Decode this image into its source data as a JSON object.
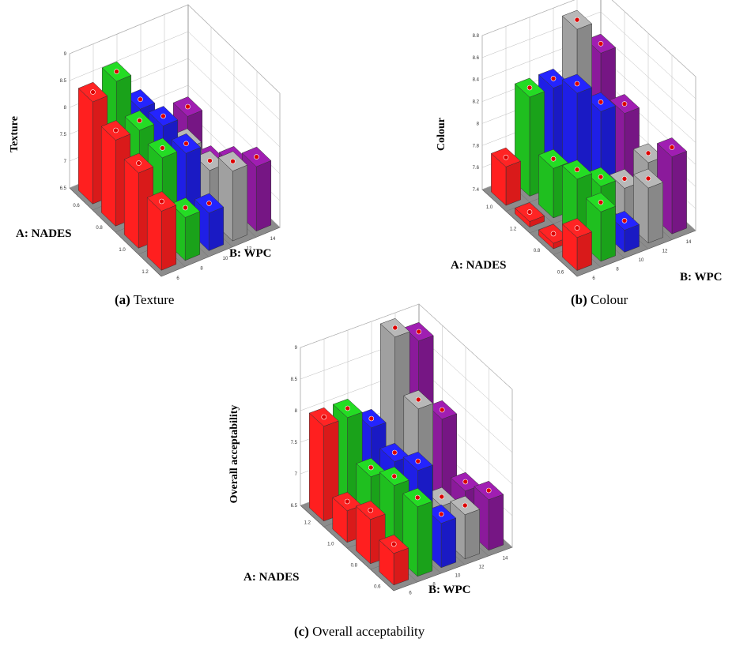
{
  "captions": [
    {
      "label": "(a)",
      "text": "Texture"
    },
    {
      "label": "(b)",
      "text": "Colour"
    },
    {
      "label": "(c)",
      "text": "Overall acceptability"
    }
  ],
  "chart_data": [
    {
      "type": "bar3d",
      "zlabel": "Texture",
      "xlabel": "A: NADES",
      "ylabel": "B: WPC",
      "zticks": [
        "6.5",
        "7",
        "7.5",
        "8",
        "8.5",
        "9"
      ],
      "zlim": [
        6.5,
        9
      ],
      "a_ticks": [
        "0.6",
        "0.8",
        "1.0",
        "1.2"
      ],
      "b_ticks": [
        "6",
        "8",
        "10",
        "12",
        "14"
      ],
      "bars": [
        {
          "a": 0,
          "b": 4,
          "z": 7.4,
          "color": "#8b1a9b"
        },
        {
          "a": 0,
          "b": 3,
          "z": 7.1,
          "color": "#a0a0a0"
        },
        {
          "a": 0,
          "b": 2,
          "z": 7.9,
          "color": "#1f1fe6"
        },
        {
          "a": 0,
          "b": 1,
          "z": 8.6,
          "color": "#1fbf1f"
        },
        {
          "a": 0,
          "b": 0,
          "z": 8.4,
          "color": "#ff1f1f"
        },
        {
          "a": 1,
          "b": 4,
          "z": 6.9,
          "color": "#8b1a9b"
        },
        {
          "a": 1,
          "b": 3,
          "z": 7.4,
          "color": "#a0a0a0"
        },
        {
          "a": 1,
          "b": 2,
          "z": 8.0,
          "color": "#1f1fe6"
        },
        {
          "a": 1,
          "b": 1,
          "z": 8.1,
          "color": "#1fbf1f"
        },
        {
          "a": 1,
          "b": 0,
          "z": 8.1,
          "color": "#ff1f1f"
        },
        {
          "a": 2,
          "b": 4,
          "z": 7.3,
          "color": "#8b1a9b"
        },
        {
          "a": 2,
          "b": 3,
          "z": 7.4,
          "color": "#a0a0a0"
        },
        {
          "a": 2,
          "b": 2,
          "z": 7.9,
          "color": "#1f1fe6"
        },
        {
          "a": 2,
          "b": 1,
          "z": 8.0,
          "color": "#1fbf1f"
        },
        {
          "a": 2,
          "b": 0,
          "z": 7.9,
          "color": "#ff1f1f"
        },
        {
          "a": 3,
          "b": 4,
          "z": 7.7,
          "color": "#8b1a9b"
        },
        {
          "a": 3,
          "b": 3,
          "z": 7.8,
          "color": "#a0a0a0"
        },
        {
          "a": 3,
          "b": 2,
          "z": 7.2,
          "color": "#1f1fe6"
        },
        {
          "a": 3,
          "b": 1,
          "z": 7.3,
          "color": "#1fbf1f"
        },
        {
          "a": 3,
          "b": 0,
          "z": 7.6,
          "color": "#ff1f1f"
        }
      ]
    },
    {
      "type": "bar3d",
      "zlabel": "Colour",
      "xlabel": "A: NADES",
      "ylabel": "B: WPC",
      "zticks": [
        "7.4",
        "7.6",
        "7.8",
        "8",
        "8.2",
        "8.4",
        "8.6",
        "8.8"
      ],
      "zlim": [
        7.4,
        8.8
      ],
      "a_ticks": [
        "1.0",
        "1.2",
        "0.8",
        "0.6"
      ],
      "b_ticks": [
        "6",
        "8",
        "10",
        "12",
        "14"
      ],
      "bars": [
        {
          "a": 0,
          "b": 0,
          "z": 7.75,
          "color": "#ff1f1f"
        },
        {
          "a": 0,
          "b": 1,
          "z": 8.3,
          "color": "#1fbf1f"
        },
        {
          "a": 0,
          "b": 2,
          "z": 8.3,
          "color": "#1f1fe6"
        },
        {
          "a": 0,
          "b": 3,
          "z": 8.75,
          "color": "#a0a0a0"
        },
        {
          "a": 0,
          "b": 4,
          "z": 8.45,
          "color": "#8b1a9b"
        },
        {
          "a": 1,
          "b": 0,
          "z": 7.45,
          "color": "#ff1f1f"
        },
        {
          "a": 1,
          "b": 1,
          "z": 7.85,
          "color": "#1fbf1f"
        },
        {
          "a": 1,
          "b": 2,
          "z": 8.45,
          "color": "#1f1fe6"
        },
        {
          "a": 1,
          "b": 3,
          "z": 8.2,
          "color": "#1f1fe6"
        },
        {
          "a": 1,
          "b": 4,
          "z": 8.1,
          "color": "#8b1a9b"
        },
        {
          "a": 2,
          "b": 0,
          "z": 7.45,
          "color": "#ff1f1f"
        },
        {
          "a": 2,
          "b": 1,
          "z": 7.95,
          "color": "#1fbf1f"
        },
        {
          "a": 2,
          "b": 2,
          "z": 7.8,
          "color": "#1fbf1f"
        },
        {
          "a": 2,
          "b": 3,
          "z": 7.7,
          "color": "#a0a0a0"
        },
        {
          "a": 2,
          "b": 4,
          "z": 7.85,
          "color": "#a0a0a0"
        },
        {
          "a": 3,
          "b": 0,
          "z": 7.7,
          "color": "#ff1f1f"
        },
        {
          "a": 3,
          "b": 1,
          "z": 7.85,
          "color": "#1fbf1f"
        },
        {
          "a": 3,
          "b": 2,
          "z": 7.6,
          "color": "#1f1fe6"
        },
        {
          "a": 3,
          "b": 3,
          "z": 7.9,
          "color": "#a0a0a0"
        },
        {
          "a": 3,
          "b": 4,
          "z": 8.1,
          "color": "#8b1a9b"
        }
      ]
    },
    {
      "type": "bar3d",
      "zlabel": "Overall acceptability",
      "xlabel": "A: NADES",
      "ylabel": "B: WPC",
      "zticks": [
        "6.5",
        "7",
        "7.5",
        "8",
        "8.5",
        "9"
      ],
      "zlim": [
        6.5,
        9
      ],
      "a_ticks": [
        "1.2",
        "1.0",
        "0.8",
        "0.6"
      ],
      "b_ticks": [
        "6",
        "8",
        "10",
        "12",
        "14"
      ],
      "bars": [
        {
          "a": 0,
          "b": 0,
          "z": 8.0,
          "color": "#ff1f1f"
        },
        {
          "a": 0,
          "b": 1,
          "z": 8.0,
          "color": "#1fbf1f"
        },
        {
          "a": 0,
          "b": 2,
          "z": 7.7,
          "color": "#1f1fe6"
        },
        {
          "a": 0,
          "b": 3,
          "z": 9.0,
          "color": "#a0a0a0"
        },
        {
          "a": 0,
          "b": 4,
          "z": 8.8,
          "color": "#8b1a9b"
        },
        {
          "a": 1,
          "b": 0,
          "z": 7.0,
          "color": "#ff1f1f"
        },
        {
          "a": 1,
          "b": 1,
          "z": 7.4,
          "color": "#1fbf1f"
        },
        {
          "a": 1,
          "b": 2,
          "z": 7.5,
          "color": "#1f1fe6"
        },
        {
          "a": 1,
          "b": 3,
          "z": 8.2,
          "color": "#a0a0a0"
        },
        {
          "a": 1,
          "b": 4,
          "z": 7.9,
          "color": "#8b1a9b"
        },
        {
          "a": 2,
          "b": 0,
          "z": 7.2,
          "color": "#ff1f1f"
        },
        {
          "a": 2,
          "b": 1,
          "z": 7.6,
          "color": "#1fbf1f"
        },
        {
          "a": 2,
          "b": 2,
          "z": 7.7,
          "color": "#1f1fe6"
        },
        {
          "a": 2,
          "b": 3,
          "z": 7.0,
          "color": "#a0a0a0"
        },
        {
          "a": 2,
          "b": 4,
          "z": 7.1,
          "color": "#8b1a9b"
        },
        {
          "a": 3,
          "b": 0,
          "z": 7.0,
          "color": "#ff1f1f"
        },
        {
          "a": 3,
          "b": 1,
          "z": 7.6,
          "color": "#1fbf1f"
        },
        {
          "a": 3,
          "b": 2,
          "z": 7.2,
          "color": "#1f1fe6"
        },
        {
          "a": 3,
          "b": 3,
          "z": 7.2,
          "color": "#a0a0a0"
        },
        {
          "a": 3,
          "b": 4,
          "z": 7.3,
          "color": "#8b1a9b"
        }
      ]
    }
  ]
}
